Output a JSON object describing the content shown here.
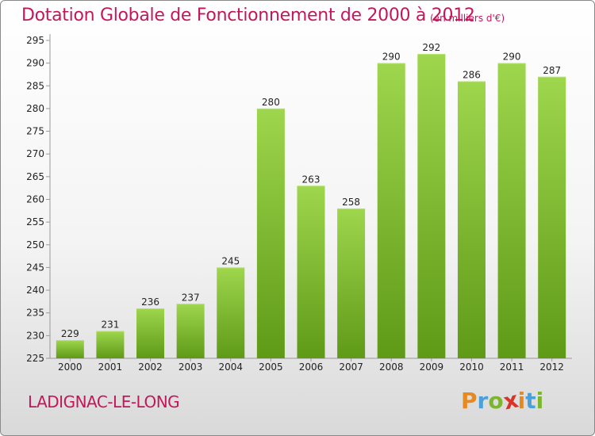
{
  "header": {
    "title": "Dotation Globale de Fonctionnement de 2000 à 2012",
    "subtitle": "(en milliers d'€)"
  },
  "footer": {
    "commune": "LADIGNAC-LE-LONG",
    "logo": [
      "P",
      "r",
      "o",
      "x",
      "i",
      "t",
      "i"
    ],
    "logo_colors": [
      "#e8891f",
      "#4aa0d8",
      "#7bb62e",
      "#d8342a",
      "#e8891f",
      "#4aa0d8",
      "#7bb62e"
    ]
  },
  "colors": {
    "bar_top": "#9ed64d",
    "bar_bottom": "#5f9a17",
    "text_accent": "#c2185b"
  },
  "chart_data": {
    "type": "bar",
    "title": "Dotation Globale de Fonctionnement de 2000 à 2012",
    "subtitle": "(en milliers d'€)",
    "categories": [
      "2000",
      "2001",
      "2002",
      "2003",
      "2004",
      "2005",
      "2006",
      "2007",
      "2008",
      "2009",
      "2010",
      "2011",
      "2012"
    ],
    "values": [
      229,
      231,
      236,
      237,
      245,
      280,
      263,
      258,
      290,
      292,
      286,
      290,
      287
    ],
    "ylim": [
      225,
      295
    ],
    "yticks": [
      225,
      230,
      235,
      240,
      245,
      250,
      255,
      260,
      265,
      270,
      275,
      280,
      285,
      290,
      295
    ],
    "grid": false,
    "data_labels": true
  }
}
